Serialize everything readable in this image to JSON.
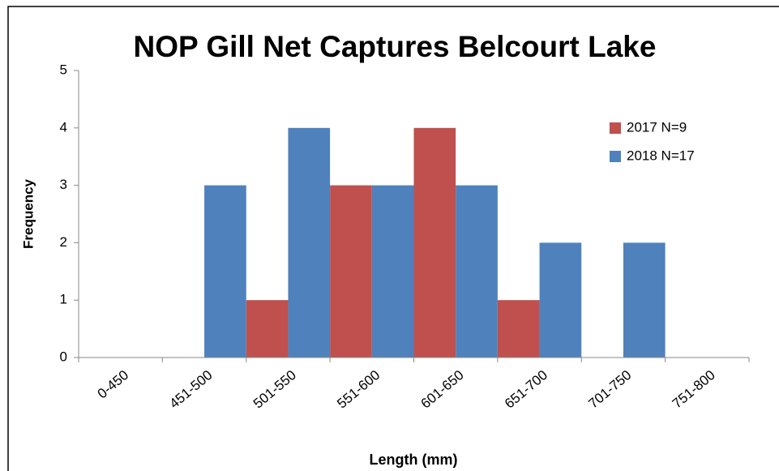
{
  "chart_data": {
    "type": "bar",
    "title": "NOP Gill Net Captures Belcourt Lake",
    "x_label": "Length (mm)",
    "y_label": "Frequency",
    "categories": [
      "0-450",
      "451-500",
      "501-550",
      "551-600",
      "601-650",
      "651-700",
      "701-750",
      "751-800"
    ],
    "series": [
      {
        "name": "2017 N=9",
        "color": "#c0504d",
        "values": [
          0,
          0,
          1,
          3,
          4,
          1,
          0,
          0
        ]
      },
      {
        "name": "2018 N=17",
        "color": "#4f81bd",
        "values": [
          0,
          3,
          4,
          3,
          3,
          2,
          2,
          0
        ]
      }
    ],
    "ylim": [
      0,
      5
    ],
    "yticks": [
      0,
      1,
      2,
      3,
      4,
      5
    ],
    "grid": false,
    "legend": "right"
  }
}
